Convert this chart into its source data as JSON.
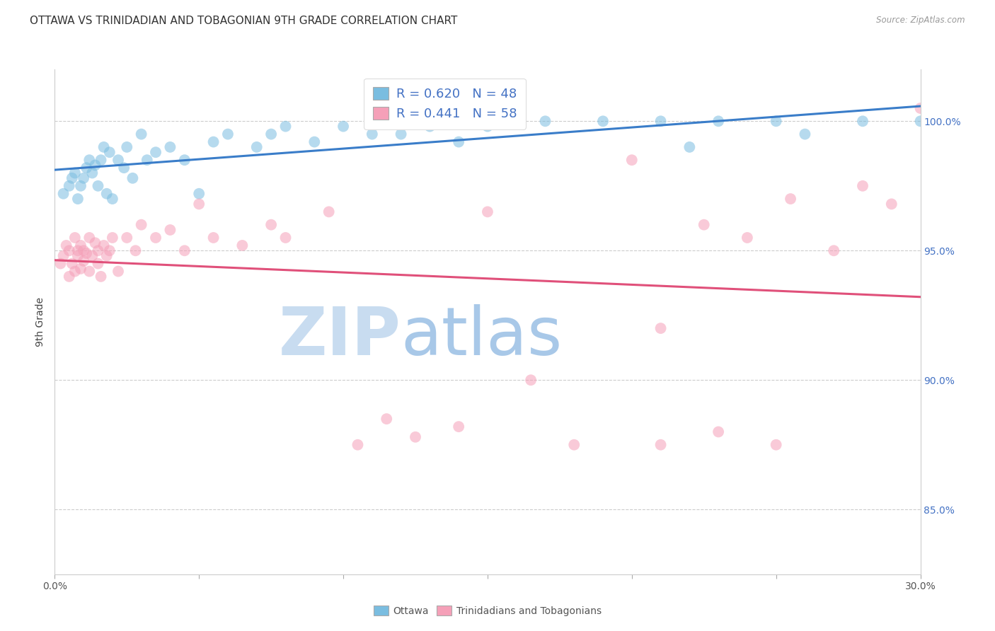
{
  "title": "OTTAWA VS TRINIDADIAN AND TOBAGONIAN 9TH GRADE CORRELATION CHART",
  "source": "Source: ZipAtlas.com",
  "ylabel": "9th Grade",
  "ytick_values": [
    85.0,
    90.0,
    95.0,
    100.0
  ],
  "ytick_labels": [
    "85.0%",
    "90.0%",
    "95.0%",
    "100.0%"
  ],
  "xmin": 0.0,
  "xmax": 30.0,
  "ymin": 82.5,
  "ymax": 102.0,
  "legend_label1": "Ottawa",
  "legend_label2": "Trinidadians and Tobagonians",
  "r1": 0.62,
  "n1": 48,
  "r2": 0.441,
  "n2": 58,
  "color_blue": "#7ABDE0",
  "color_pink": "#F5A0B8",
  "color_blue_line": "#3A7DC9",
  "color_pink_line": "#E0507A",
  "watermark_zip": "ZIP",
  "watermark_atlas": "atlas",
  "watermark_color_zip": "#C8DCF0",
  "watermark_color_atlas": "#A8C8E8",
  "blue_points_x": [
    0.3,
    0.5,
    0.6,
    0.7,
    0.8,
    0.9,
    1.0,
    1.1,
    1.2,
    1.3,
    1.4,
    1.5,
    1.6,
    1.7,
    1.8,
    1.9,
    2.0,
    2.2,
    2.4,
    2.5,
    2.7,
    3.0,
    3.2,
    3.5,
    4.0,
    4.5,
    5.0,
    5.5,
    6.0,
    7.0,
    7.5,
    8.0,
    9.0,
    10.0,
    11.0,
    12.0,
    13.0,
    14.0,
    15.0,
    17.0,
    19.0,
    21.0,
    22.0,
    23.0,
    25.0,
    26.0,
    28.0,
    30.0
  ],
  "blue_points_y": [
    97.2,
    97.5,
    97.8,
    98.0,
    97.0,
    97.5,
    97.8,
    98.2,
    98.5,
    98.0,
    98.3,
    97.5,
    98.5,
    99.0,
    97.2,
    98.8,
    97.0,
    98.5,
    98.2,
    99.0,
    97.8,
    99.5,
    98.5,
    98.8,
    99.0,
    98.5,
    97.2,
    99.2,
    99.5,
    99.0,
    99.5,
    99.8,
    99.2,
    99.8,
    99.5,
    99.5,
    99.8,
    99.2,
    99.8,
    100.0,
    100.0,
    100.0,
    99.0,
    100.0,
    100.0,
    99.5,
    100.0,
    100.0
  ],
  "pink_points_x": [
    0.2,
    0.3,
    0.4,
    0.5,
    0.5,
    0.6,
    0.7,
    0.7,
    0.8,
    0.8,
    0.9,
    0.9,
    1.0,
    1.0,
    1.1,
    1.2,
    1.2,
    1.3,
    1.4,
    1.5,
    1.5,
    1.6,
    1.7,
    1.8,
    1.9,
    2.0,
    2.2,
    2.5,
    2.8,
    3.0,
    3.5,
    4.0,
    4.5,
    5.0,
    5.5,
    6.5,
    7.5,
    8.0,
    9.5,
    10.5,
    11.5,
    12.5,
    14.0,
    15.0,
    16.5,
    18.0,
    20.0,
    21.0,
    22.5,
    24.0,
    25.5,
    27.0,
    28.0,
    29.0,
    30.0,
    21.0,
    23.0,
    25.0
  ],
  "pink_points_y": [
    94.5,
    94.8,
    95.2,
    94.0,
    95.0,
    94.5,
    95.5,
    94.2,
    94.8,
    95.0,
    94.3,
    95.2,
    94.6,
    95.0,
    94.9,
    94.2,
    95.5,
    94.8,
    95.3,
    94.5,
    95.0,
    94.0,
    95.2,
    94.8,
    95.0,
    95.5,
    94.2,
    95.5,
    95.0,
    96.0,
    95.5,
    95.8,
    95.0,
    96.8,
    95.5,
    95.2,
    96.0,
    95.5,
    96.5,
    87.5,
    88.5,
    87.8,
    88.2,
    96.5,
    90.0,
    87.5,
    98.5,
    92.0,
    96.0,
    95.5,
    97.0,
    95.0,
    97.5,
    96.8,
    100.5,
    87.5,
    88.0,
    87.5
  ]
}
